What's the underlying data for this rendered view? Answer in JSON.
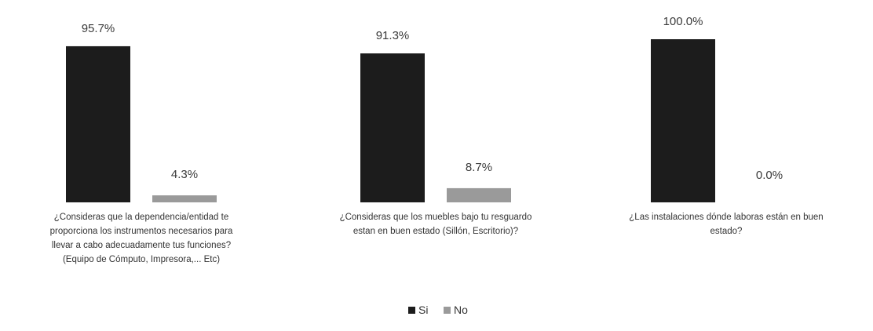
{
  "chart_data": {
    "type": "bar",
    "categories": [
      [
        "¿Consideras que la dependencia/entidad te",
        "proporciona los instrumentos necesarios para",
        "llevar a cabo adecuadamente tus funciones?",
        "(Equipo de Cómputo, Impresora,... Etc)"
      ],
      [
        "¿Consideras que los muebles bajo tu resguardo",
        "estan en buen estado (Sillón, Escritorio)?"
      ],
      [
        "¿Las instalaciones dónde laboras están en buen",
        "estado?"
      ]
    ],
    "series": [
      {
        "name": "Si",
        "values": [
          95.7,
          91.3,
          100.0
        ],
        "labels": [
          "95.7%",
          "91.3%",
          "100.0%"
        ],
        "color": "#1c1c1c"
      },
      {
        "name": "No",
        "values": [
          4.3,
          8.7,
          0.0
        ],
        "labels": [
          "4.3%",
          "8.7%",
          "0.0%"
        ],
        "color": "#9a9a9a"
      }
    ],
    "ylim": [
      0,
      100
    ],
    "grid": false,
    "legend_position": "bottom-center"
  }
}
